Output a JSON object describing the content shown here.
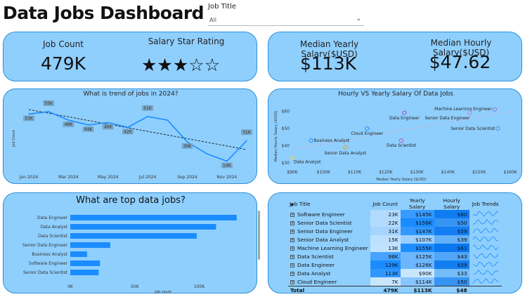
{
  "header": {
    "title": "Data Jobs Dashboard",
    "filter_label": "Job Title",
    "filter_value": "All"
  },
  "kpi": {
    "job_count_label": "Job Count",
    "job_count_value": "479K",
    "rating_label": "Salary Star Rating",
    "rating_value": 3,
    "rating_max": 5,
    "median_yearly_label": "Median Yearly Salary($USD)",
    "median_yearly_value": "$113K",
    "median_hourly_label": "Median Hourly Salary($USD)",
    "median_hourly_value": "$47.62"
  },
  "chart_data": [
    {
      "type": "line",
      "title": "What is trend of jobs in 2024?",
      "ylabel": "Job Count",
      "x": [
        "Jan 2024",
        "Feb 2024",
        "Mar 2024",
        "Apr 2024",
        "May 2024",
        "Jun 2024",
        "Jul 2024",
        "Aug 2024",
        "Sep 2024",
        "Oct 2024",
        "Nov 2024",
        "Dec 2024"
      ],
      "x_tick_labels": [
        "Jan 2024",
        "Mar 2024",
        "May 2024",
        "Jul 2024",
        "Sep 2024",
        "Nov 2024"
      ],
      "values": [
        53,
        55,
        48,
        44,
        46,
        42,
        51,
        48,
        30,
        20,
        14,
        31
      ],
      "point_labels": [
        "53K",
        "55K",
        "48K",
        "44K",
        "46K",
        "42K",
        "51K",
        "",
        "30K",
        "",
        "14K",
        "31K"
      ],
      "trendline": true,
      "ylim": [
        5,
        62
      ],
      "color": "#1a8cff"
    },
    {
      "type": "scatter",
      "title": "Hourly VS Yearly Salary Of Data Jobs",
      "xlabel": "Median Yearly Salary ($USD)",
      "ylabel": "Median Hourly Salary ($USD)",
      "x_ticks": [
        "$90K",
        "$100K",
        "$110K",
        "$120K",
        "$130K",
        "$140K",
        "$150K",
        "$160K"
      ],
      "y_ticks": [
        "$60",
        "$50",
        "$40",
        "$30"
      ],
      "xlim": [
        90,
        160
      ],
      "ylim": [
        28,
        63
      ],
      "points": [
        {
          "label": "Data Analyst",
          "x": 90,
          "y": 33,
          "color": "#f0d060"
        },
        {
          "label": "Business Analyst",
          "x": 96,
          "y": 43,
          "color": "#1a8cff"
        },
        {
          "label": "Senior Data Analyst",
          "x": 107,
          "y": 39,
          "color": "#f0a030"
        },
        {
          "label": "Cloud Engineer",
          "x": 114,
          "y": 50,
          "color": "#1a8cff"
        },
        {
          "label": "Data Engineer",
          "x": 126,
          "y": 59,
          "color": "#9a50c8"
        },
        {
          "label": "Data Scientist",
          "x": 125,
          "y": 43,
          "color": "#c050c0"
        },
        {
          "label": "Machine Learning Engineer",
          "x": 155,
          "y": 61,
          "color": "#a070d0"
        },
        {
          "label": "Senior Data Engineer",
          "x": 147,
          "y": 59,
          "color": "#c080d0"
        },
        {
          "label": "Senior Data Scientist",
          "x": 156,
          "y": 50,
          "color": "#4090e0"
        }
      ],
      "trendline": true
    },
    {
      "type": "bar",
      "orientation": "horizontal",
      "title": "What are top data jobs?",
      "xlabel": "Job count",
      "x_ticks": [
        "0K",
        "50K",
        "100K"
      ],
      "xlim": [
        0,
        140
      ],
      "categories": [
        "Data Engineer",
        "Data Analyst",
        "Data Scientist",
        "Senior Data Engineer",
        "Business Analyst",
        "Software Engineer",
        "Senior Data Scientist"
      ],
      "values": [
        129,
        113,
        98,
        31,
        13,
        23,
        22
      ],
      "color": "#1a8cff"
    }
  ],
  "table": {
    "headers": [
      "Job Title",
      "Job Count",
      "Yearly Salary",
      "Hourly Salary",
      "Job Trends"
    ],
    "rows": [
      {
        "title": "Software Engineer",
        "count": "23K",
        "yearly": "$145K",
        "hourly": "$60",
        "count_level": 0.18,
        "yearly_level": 0.85,
        "hourly_level": 0.95
      },
      {
        "title": "Senior Data Scientist",
        "count": "22K",
        "yearly": "$156K",
        "hourly": "$50",
        "count_level": 0.17,
        "yearly_level": 1.0,
        "hourly_level": 0.6
      },
      {
        "title": "Senior Data Engineer",
        "count": "31K",
        "yearly": "$147K",
        "hourly": "$59",
        "count_level": 0.24,
        "yearly_level": 0.87,
        "hourly_level": 0.92
      },
      {
        "title": "Senior Data Analyst",
        "count": "15K",
        "yearly": "$107K",
        "hourly": "$39",
        "count_level": 0.12,
        "yearly_level": 0.3,
        "hourly_level": 0.2
      },
      {
        "title": "Machine Learning Engineer",
        "count": "13K",
        "yearly": "$155K",
        "hourly": "$61",
        "count_level": 0.1,
        "yearly_level": 0.98,
        "hourly_level": 1.0
      },
      {
        "title": "Data Scientist",
        "count": "98K",
        "yearly": "$125K",
        "hourly": "$43",
        "count_level": 0.76,
        "yearly_level": 0.55,
        "hourly_level": 0.35
      },
      {
        "title": "Data Engineer",
        "count": "129K",
        "yearly": "$126K",
        "hourly": "$59",
        "count_level": 1.0,
        "yearly_level": 0.56,
        "hourly_level": 0.92
      },
      {
        "title": "Data Analyst",
        "count": "113K",
        "yearly": "$90K",
        "hourly": "$33",
        "count_level": 0.88,
        "yearly_level": 0.05,
        "hourly_level": 0.05
      },
      {
        "title": "Cloud Engineer",
        "count": "7K",
        "yearly": "$114K",
        "hourly": "$50",
        "count_level": 0.05,
        "yearly_level": 0.4,
        "hourly_level": 0.6
      }
    ],
    "total": {
      "title": "Total",
      "count": "479K",
      "yearly": "$113K",
      "hourly": "$48"
    }
  },
  "colors": {
    "card_bg": "#8fcffe",
    "card_border": "#2f8fd8",
    "accent": "#1a8cff"
  }
}
